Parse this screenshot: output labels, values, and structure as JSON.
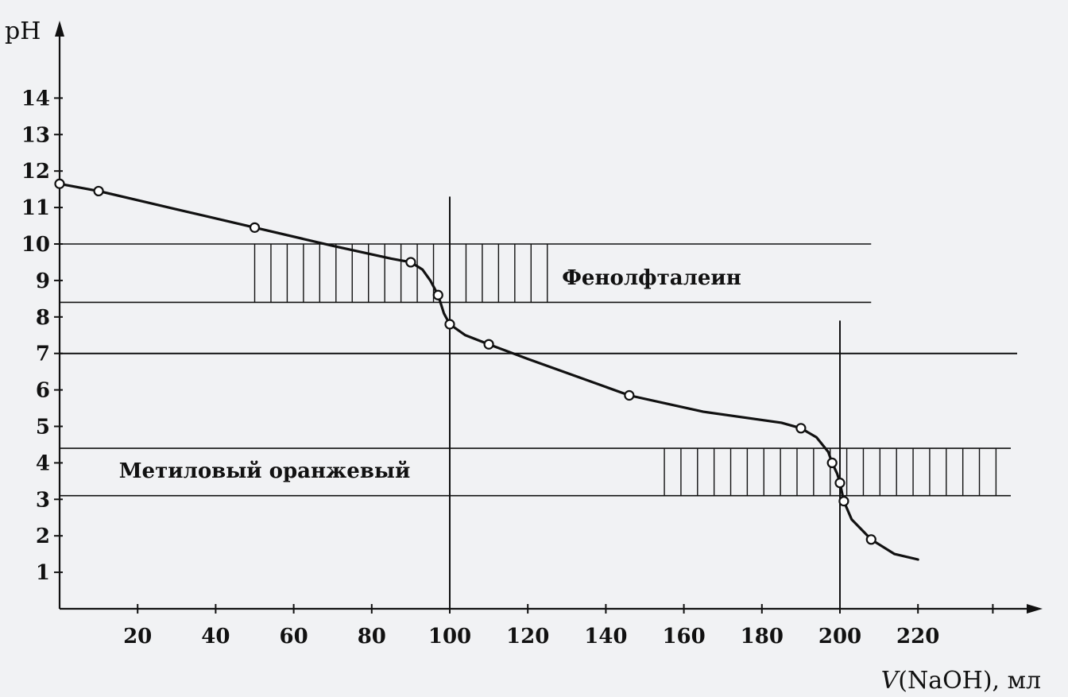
{
  "chart_data": {
    "type": "line",
    "xlabel_italic": "V",
    "xlabel_rest": "(NaOH), мл",
    "ylabel": "pH",
    "xlim": [
      0,
      250
    ],
    "ylim": [
      0,
      16
    ],
    "x_ticks": [
      20,
      40,
      60,
      80,
      100,
      120,
      140,
      160,
      180,
      200,
      220
    ],
    "y_ticks": [
      1,
      2,
      3,
      4,
      5,
      6,
      7,
      8,
      9,
      10,
      11,
      12,
      13,
      14
    ],
    "series": [
      {
        "points": [
          [
            0,
            11.65
          ],
          [
            10,
            11.45
          ],
          [
            50,
            10.45
          ],
          [
            90,
            9.5
          ],
          [
            97,
            8.6
          ],
          [
            100,
            7.8
          ],
          [
            110,
            7.25
          ],
          [
            146,
            5.85
          ],
          [
            190,
            4.95
          ],
          [
            198,
            4.0
          ],
          [
            200,
            3.45
          ],
          [
            201,
            2.95
          ],
          [
            208,
            1.9
          ]
        ],
        "curve": [
          [
            0,
            11.65
          ],
          [
            10,
            11.45
          ],
          [
            30,
            10.95
          ],
          [
            50,
            10.45
          ],
          [
            70,
            9.95
          ],
          [
            85,
            9.6
          ],
          [
            90,
            9.5
          ],
          [
            93,
            9.3
          ],
          [
            95,
            9.0
          ],
          [
            97,
            8.6
          ],
          [
            98.5,
            8.1
          ],
          [
            100,
            7.8
          ],
          [
            104,
            7.5
          ],
          [
            110,
            7.25
          ],
          [
            120,
            6.85
          ],
          [
            146,
            5.85
          ],
          [
            165,
            5.4
          ],
          [
            185,
            5.1
          ],
          [
            190,
            4.95
          ],
          [
            194,
            4.7
          ],
          [
            197,
            4.3
          ],
          [
            198,
            4.0
          ],
          [
            199.3,
            3.7
          ],
          [
            200,
            3.45
          ],
          [
            201,
            2.95
          ],
          [
            203,
            2.45
          ],
          [
            208,
            1.9
          ],
          [
            214,
            1.5
          ],
          [
            220,
            1.35
          ]
        ]
      }
    ],
    "reference_lines": {
      "horizontal_y": 7,
      "vertical_x": [
        100,
        200
      ]
    },
    "indicator_zones": [
      {
        "name": "Фенолфталеин",
        "y_from": 8.4,
        "y_to": 10.0,
        "x_line_end": 208,
        "x_hatch_from": 50,
        "x_hatch_to": 125
      },
      {
        "name": "Метиловый оранжевый",
        "y_from": 3.1,
        "y_to": 4.4,
        "x_line_end": 250,
        "x_hatch_from": 155,
        "x_hatch_to": 240
      }
    ]
  }
}
